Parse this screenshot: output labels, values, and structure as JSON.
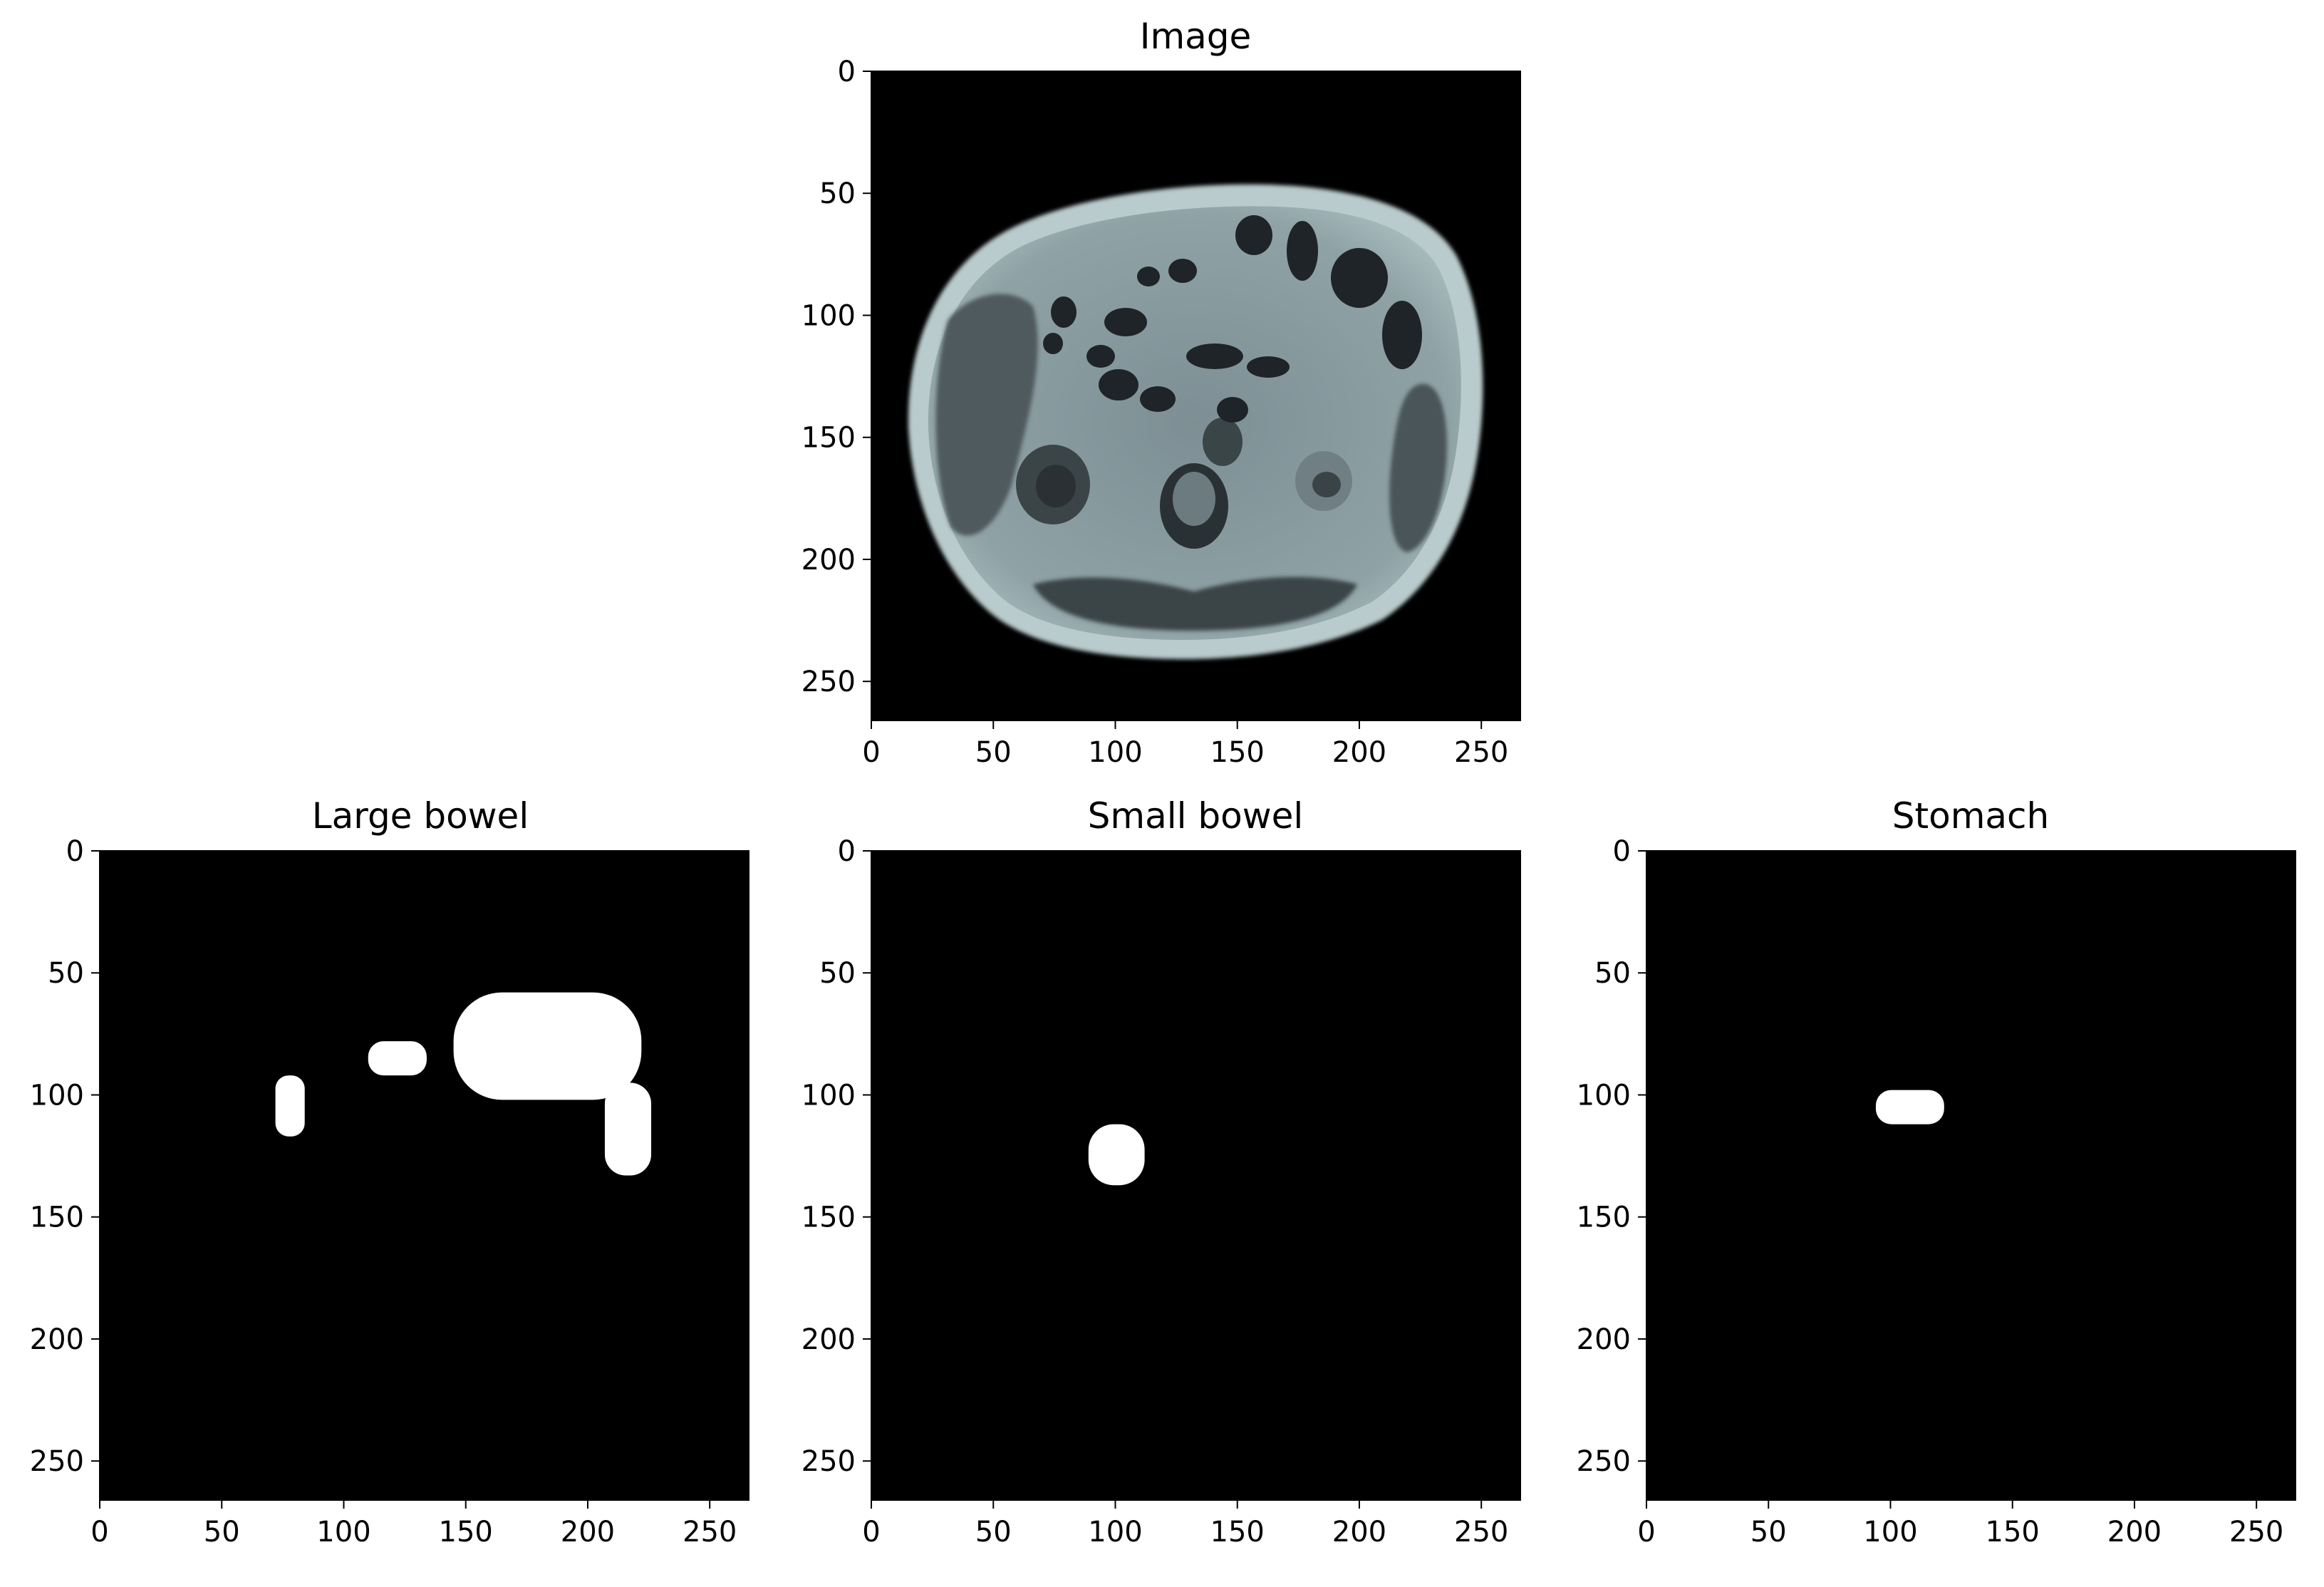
{
  "figure": {
    "panels": [
      {
        "id": "image",
        "title": "Image"
      },
      {
        "id": "large-bowel",
        "title": "Large bowel"
      },
      {
        "id": "small-bowel",
        "title": "Small bowel"
      },
      {
        "id": "stomach",
        "title": "Stomach"
      }
    ]
  },
  "chart_data": [
    {
      "type": "heatmap",
      "title": "Image",
      "description_shown": "grayscale MRI axial abdominal slice (bone colormap)",
      "xlim": [
        0,
        266
      ],
      "ylim": [
        266,
        0
      ],
      "xticks": [
        0,
        50,
        100,
        150,
        200,
        250
      ],
      "yticks": [
        0,
        50,
        100,
        150,
        200,
        250
      ],
      "colormap": "bone",
      "colors": {
        "background": "#000000",
        "tissue": "#8a9aa0",
        "bright": "#c8d6d8",
        "dark_organ": "#2b3236"
      }
    },
    {
      "type": "heatmap",
      "title": "Large bowel",
      "xlim": [
        0,
        266
      ],
      "ylim": [
        266,
        0
      ],
      "xticks": [
        0,
        50,
        100,
        150,
        200,
        250
      ],
      "yticks": [
        0,
        50,
        100,
        150,
        200,
        250
      ],
      "mask_blobs": [
        {
          "x": [
            72,
            84
          ],
          "y": [
            92,
            117
          ]
        },
        {
          "x": [
            110,
            134
          ],
          "y": [
            78,
            92
          ]
        },
        {
          "x": [
            145,
            222
          ],
          "y": [
            58,
            102
          ]
        },
        {
          "x": [
            207,
            226
          ],
          "y": [
            95,
            133
          ]
        }
      ],
      "colors": {
        "background": "#000000",
        "mask": "#ffffff"
      }
    },
    {
      "type": "heatmap",
      "title": "Small bowel",
      "xlim": [
        0,
        266
      ],
      "ylim": [
        266,
        0
      ],
      "xticks": [
        0,
        50,
        100,
        150,
        200,
        250
      ],
      "yticks": [
        0,
        50,
        100,
        150,
        200,
        250
      ],
      "mask_blobs": [
        {
          "x": [
            89,
            112
          ],
          "y": [
            112,
            137
          ]
        }
      ],
      "colors": {
        "background": "#000000",
        "mask": "#ffffff"
      }
    },
    {
      "type": "heatmap",
      "title": "Stomach",
      "xlim": [
        0,
        266
      ],
      "ylim": [
        266,
        0
      ],
      "xticks": [
        0,
        50,
        100,
        150,
        200,
        250
      ],
      "yticks": [
        0,
        50,
        100,
        150,
        200,
        250
      ],
      "mask_blobs": [
        {
          "x": [
            94,
            122
          ],
          "y": [
            98,
            112
          ]
        }
      ],
      "colors": {
        "background": "#000000",
        "mask": "#ffffff"
      }
    }
  ]
}
